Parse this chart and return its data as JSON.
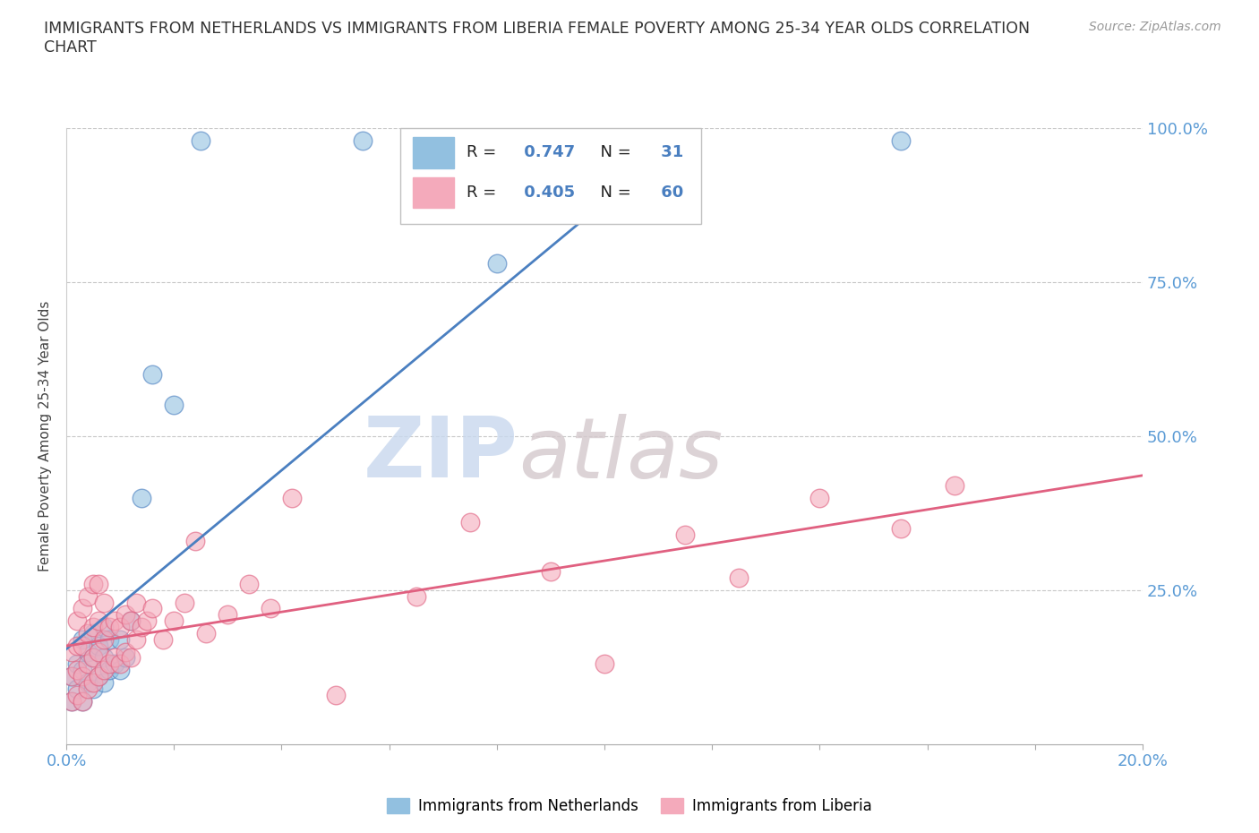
{
  "title": "IMMIGRANTS FROM NETHERLANDS VS IMMIGRANTS FROM LIBERIA FEMALE POVERTY AMONG 25-34 YEAR OLDS CORRELATION\nCHART",
  "source": "Source: ZipAtlas.com",
  "ylabel": "Female Poverty Among 25-34 Year Olds",
  "xlim": [
    0,
    0.2
  ],
  "ylim": [
    0,
    1.0
  ],
  "xticks": [
    0.0,
    0.02,
    0.04,
    0.06,
    0.08,
    0.1,
    0.12,
    0.14,
    0.16,
    0.18,
    0.2
  ],
  "yticks": [
    0.0,
    0.25,
    0.5,
    0.75,
    1.0
  ],
  "watermark_zip": "ZIP",
  "watermark_atlas": "atlas",
  "blue_R": 0.747,
  "blue_N": 31,
  "pink_R": 0.405,
  "pink_N": 60,
  "blue_color": "#92C0E0",
  "pink_color": "#F4AABB",
  "blue_line_color": "#4A7FC0",
  "pink_line_color": "#E06080",
  "legend_label_blue": "Immigrants from Netherlands",
  "legend_label_pink": "Immigrants from Liberia",
  "blue_scatter_x": [
    0.001,
    0.001,
    0.002,
    0.002,
    0.003,
    0.003,
    0.003,
    0.004,
    0.004,
    0.005,
    0.005,
    0.005,
    0.006,
    0.006,
    0.007,
    0.007,
    0.007,
    0.008,
    0.008,
    0.009,
    0.01,
    0.01,
    0.011,
    0.012,
    0.014,
    0.016,
    0.02,
    0.025,
    0.055,
    0.08,
    0.155
  ],
  "blue_scatter_y": [
    0.07,
    0.11,
    0.09,
    0.13,
    0.07,
    0.12,
    0.17,
    0.1,
    0.15,
    0.09,
    0.14,
    0.18,
    0.11,
    0.16,
    0.1,
    0.14,
    0.19,
    0.12,
    0.17,
    0.13,
    0.12,
    0.17,
    0.14,
    0.2,
    0.4,
    0.6,
    0.55,
    0.98,
    0.98,
    0.78,
    0.98
  ],
  "pink_scatter_x": [
    0.001,
    0.001,
    0.001,
    0.002,
    0.002,
    0.002,
    0.002,
    0.003,
    0.003,
    0.003,
    0.003,
    0.004,
    0.004,
    0.004,
    0.004,
    0.005,
    0.005,
    0.005,
    0.005,
    0.006,
    0.006,
    0.006,
    0.006,
    0.007,
    0.007,
    0.007,
    0.008,
    0.008,
    0.009,
    0.009,
    0.01,
    0.01,
    0.011,
    0.011,
    0.012,
    0.012,
    0.013,
    0.013,
    0.014,
    0.015,
    0.016,
    0.018,
    0.02,
    0.022,
    0.024,
    0.026,
    0.03,
    0.034,
    0.038,
    0.042,
    0.05,
    0.065,
    0.075,
    0.09,
    0.1,
    0.115,
    0.125,
    0.14,
    0.155,
    0.165
  ],
  "pink_scatter_y": [
    0.07,
    0.11,
    0.15,
    0.08,
    0.12,
    0.16,
    0.2,
    0.07,
    0.11,
    0.16,
    0.22,
    0.09,
    0.13,
    0.18,
    0.24,
    0.1,
    0.14,
    0.19,
    0.26,
    0.11,
    0.15,
    0.2,
    0.26,
    0.12,
    0.17,
    0.23,
    0.13,
    0.19,
    0.14,
    0.2,
    0.13,
    0.19,
    0.15,
    0.21,
    0.14,
    0.2,
    0.17,
    0.23,
    0.19,
    0.2,
    0.22,
    0.17,
    0.2,
    0.23,
    0.33,
    0.18,
    0.21,
    0.26,
    0.22,
    0.4,
    0.08,
    0.24,
    0.36,
    0.28,
    0.13,
    0.34,
    0.27,
    0.4,
    0.35,
    0.42
  ]
}
